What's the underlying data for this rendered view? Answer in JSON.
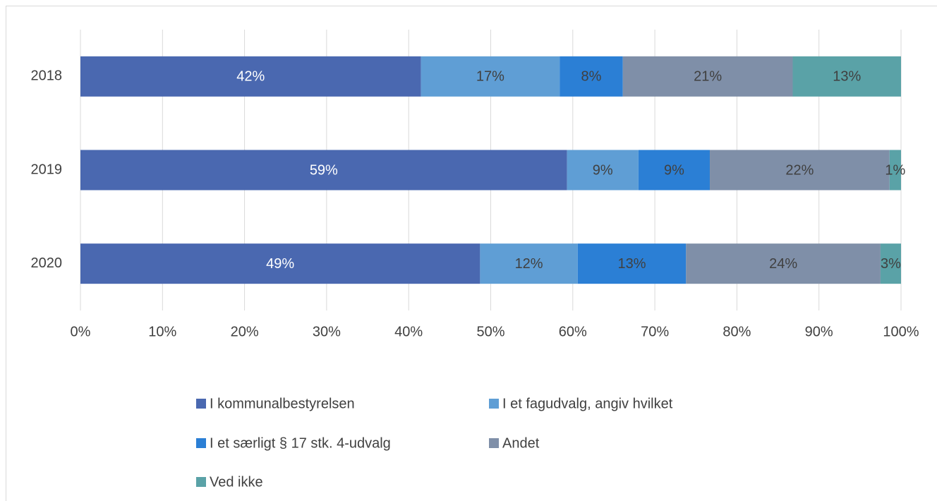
{
  "chart_data": {
    "type": "stacked-bar-horizontal",
    "categories": [
      "2018",
      "2019",
      "2020"
    ],
    "series": [
      {
        "name": "I kommunalbestyrelsen",
        "color": "#4a68b0",
        "values": [
          41.5,
          59.3,
          48.7
        ],
        "value_labels": [
          "42%",
          "59%",
          "49%"
        ]
      },
      {
        "name": "I et fagudvalg, angiv hvilket",
        "color": "#5f9ed5",
        "values": [
          16.9,
          8.7,
          11.9
        ],
        "value_labels": [
          "17%",
          "9%",
          "12%"
        ]
      },
      {
        "name": "I et særligt § 17 stk. 4-udvalg",
        "color": "#2b7fd5",
        "values": [
          7.7,
          8.7,
          13.2
        ],
        "value_labels": [
          "8%",
          "9%",
          "13%"
        ]
      },
      {
        "name": "Andet",
        "color": "#7f8fa8",
        "values": [
          20.7,
          21.9,
          23.7
        ],
        "value_labels": [
          "21%",
          "22%",
          "24%"
        ]
      },
      {
        "name": "Ved ikke",
        "color": "#5aa2a7",
        "values": [
          13.2,
          1.4,
          2.5
        ],
        "value_labels": [
          "13%",
          "1%",
          "3%"
        ]
      }
    ],
    "xlim": [
      0,
      100
    ],
    "xticks": [
      {
        "value": 0,
        "label": "0%"
      },
      {
        "value": 10,
        "label": "10%"
      },
      {
        "value": 20,
        "label": "20%"
      },
      {
        "value": 30,
        "label": "30%"
      },
      {
        "value": 40,
        "label": "40%"
      },
      {
        "value": 50,
        "label": "50%"
      },
      {
        "value": 60,
        "label": "60%"
      },
      {
        "value": 70,
        "label": "70%"
      },
      {
        "value": 80,
        "label": "80%"
      },
      {
        "value": 90,
        "label": "90%"
      },
      {
        "value": 100,
        "label": "100%"
      }
    ],
    "grid": true,
    "legend": "bottom"
  }
}
